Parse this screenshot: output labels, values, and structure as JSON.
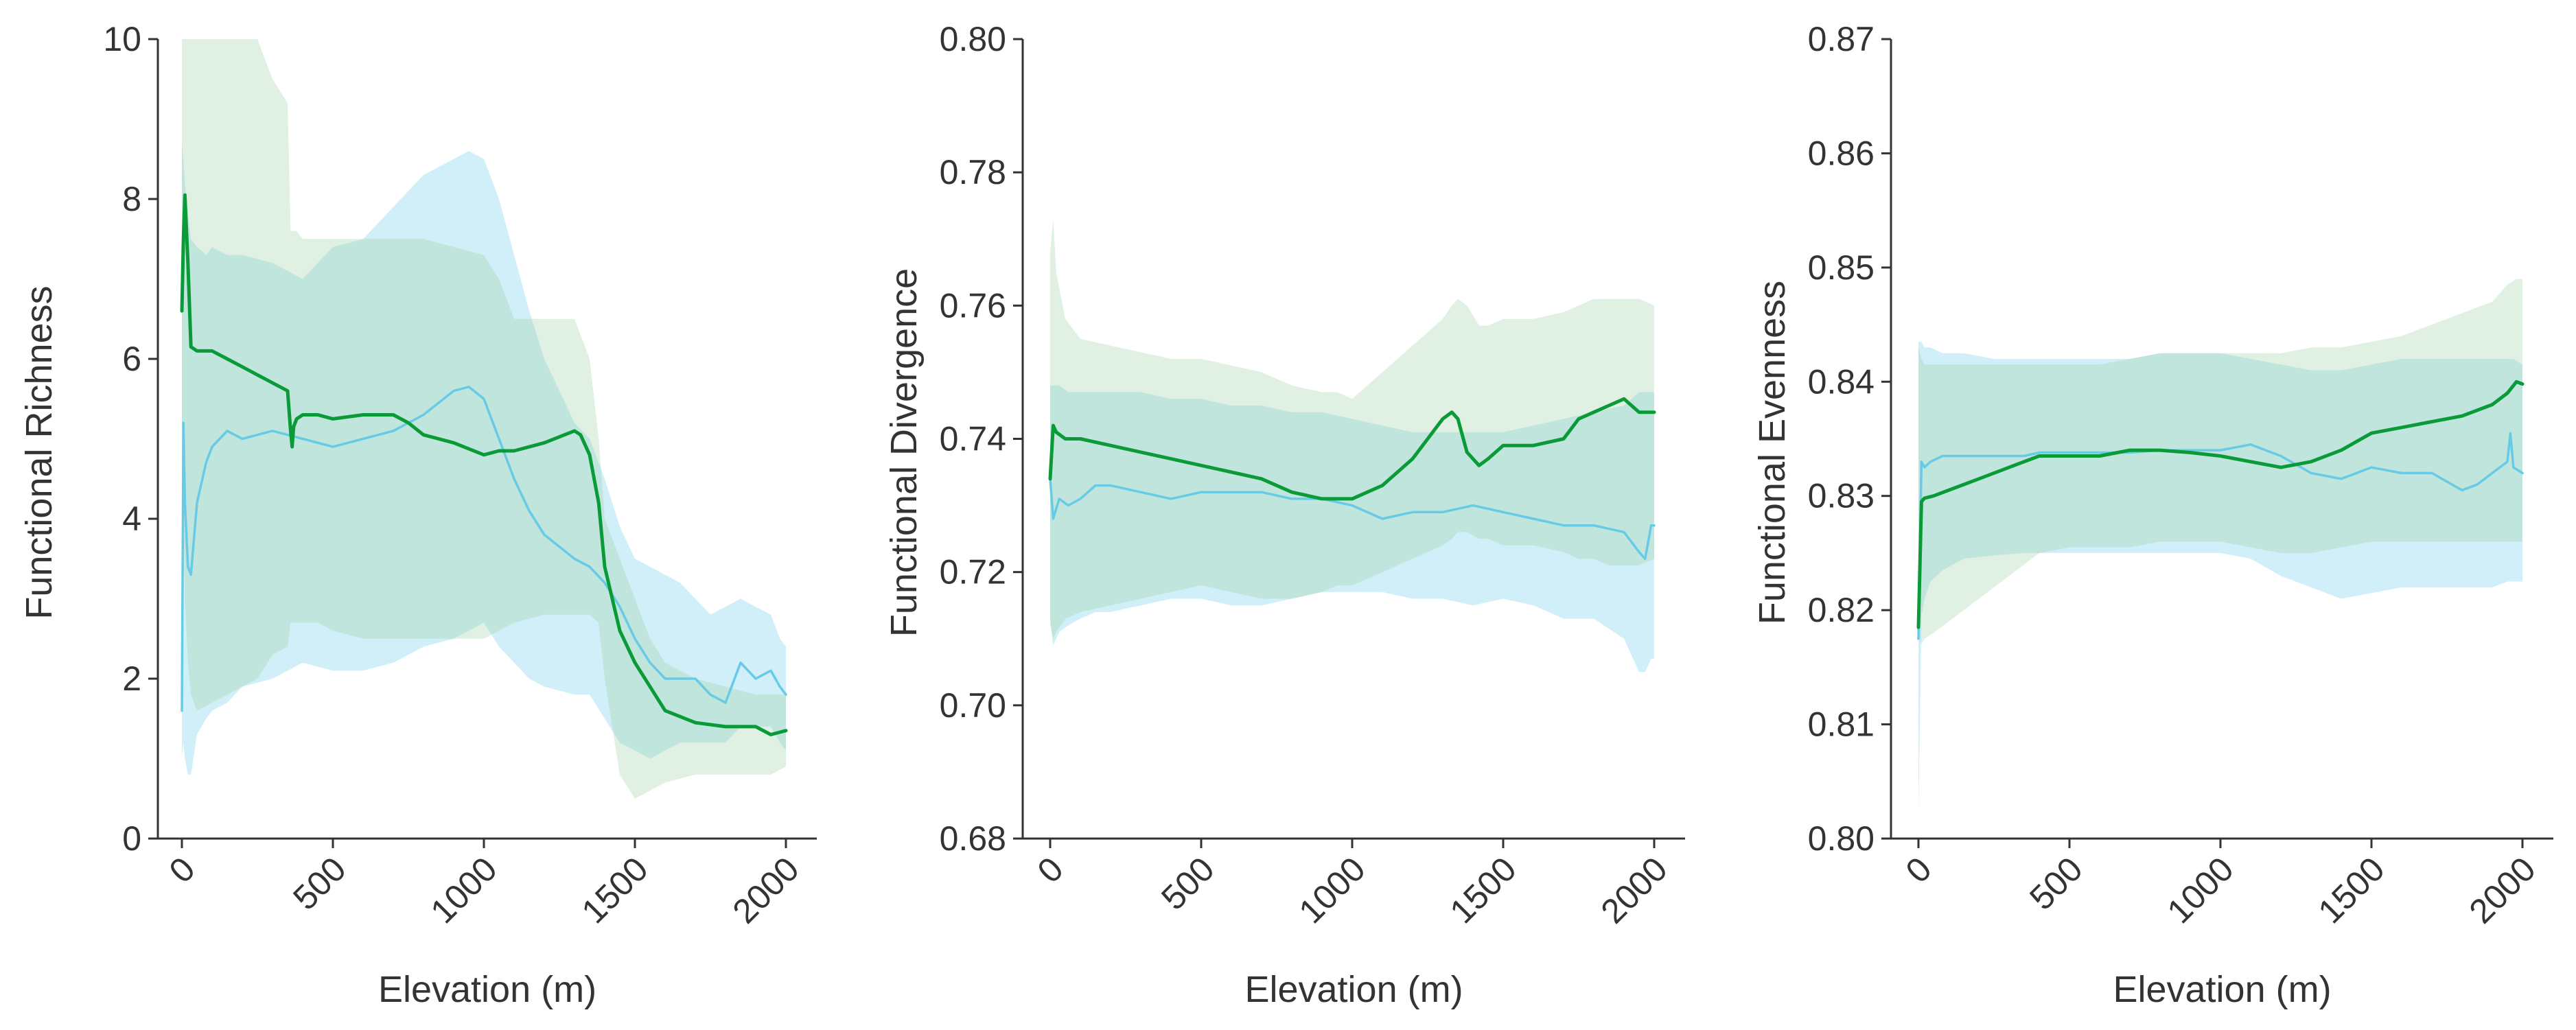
{
  "colors": {
    "green_line": "#0a9a38",
    "green_band": "#9fd1a4",
    "blue_line": "#67cbe6",
    "blue_band": "#8ad8ee"
  },
  "chart_data": [
    {
      "type": "line",
      "title": "",
      "xlabel": "Elevation (m)",
      "ylabel": "Functional Richness",
      "xlim": [
        0,
        2000
      ],
      "ylim": [
        0,
        10
      ],
      "xticks": [
        0,
        500,
        1000,
        1500,
        2000
      ],
      "xtick_labels": [
        "0",
        "500",
        "1000",
        "1500",
        "2000"
      ],
      "yticks": [
        0,
        2,
        4,
        6,
        8,
        10
      ],
      "ytick_labels": [
        "0",
        "2",
        "4",
        "6",
        "8",
        "10"
      ],
      "series": [
        {
          "name": "green",
          "color_key": "green",
          "x": [
            0,
            5,
            10,
            20,
            30,
            50,
            100,
            150,
            200,
            250,
            300,
            350,
            360,
            365,
            370,
            380,
            400,
            450,
            500,
            600,
            700,
            750,
            800,
            900,
            1000,
            1050,
            1100,
            1200,
            1300,
            1320,
            1350,
            1380,
            1400,
            1450,
            1500,
            1550,
            1600,
            1700,
            1800,
            1900,
            1950,
            2000
          ],
          "y": [
            6.6,
            7.5,
            8.05,
            7.2,
            6.15,
            6.1,
            6.1,
            6.0,
            5.9,
            5.8,
            5.7,
            5.6,
            5.1,
            4.9,
            5.15,
            5.25,
            5.3,
            5.3,
            5.25,
            5.3,
            5.3,
            5.2,
            5.05,
            4.95,
            4.8,
            4.85,
            4.85,
            4.95,
            5.1,
            5.05,
            4.8,
            4.2,
            3.4,
            2.6,
            2.2,
            1.9,
            1.6,
            1.45,
            1.4,
            1.4,
            1.3,
            1.35
          ],
          "lower": [
            5.2,
            4.0,
            3.0,
            2.2,
            1.8,
            1.6,
            1.7,
            1.8,
            1.9,
            2.0,
            2.3,
            2.4,
            2.7,
            2.7,
            2.7,
            2.7,
            2.7,
            2.7,
            2.6,
            2.5,
            2.5,
            2.5,
            2.5,
            2.5,
            2.5,
            2.6,
            2.7,
            2.8,
            2.8,
            2.8,
            2.8,
            2.7,
            2.0,
            0.8,
            0.5,
            0.6,
            0.7,
            0.8,
            0.8,
            0.8,
            0.8,
            0.9
          ],
          "upper": [
            10,
            10,
            10,
            10,
            10,
            10,
            10,
            10,
            10,
            10,
            9.5,
            9.2,
            7.6,
            7.6,
            7.6,
            7.6,
            7.5,
            7.5,
            7.5,
            7.5,
            7.5,
            7.5,
            7.5,
            7.4,
            7.3,
            7.0,
            6.5,
            6.5,
            6.5,
            6.3,
            6.0,
            5.0,
            4.0,
            3.5,
            3.0,
            2.5,
            2.2,
            2.0,
            1.9,
            1.8,
            1.8,
            1.8
          ]
        },
        {
          "name": "blue",
          "color_key": "blue",
          "x": [
            0,
            5,
            10,
            20,
            30,
            50,
            80,
            100,
            150,
            200,
            300,
            400,
            500,
            600,
            700,
            800,
            900,
            950,
            1000,
            1050,
            1100,
            1150,
            1200,
            1300,
            1350,
            1400,
            1450,
            1500,
            1550,
            1600,
            1650,
            1700,
            1750,
            1800,
            1850,
            1900,
            1950,
            1980,
            2000
          ],
          "y": [
            1.6,
            5.2,
            4.2,
            3.4,
            3.3,
            4.2,
            4.7,
            4.9,
            5.1,
            5.0,
            5.1,
            5.0,
            4.9,
            5.0,
            5.1,
            5.3,
            5.6,
            5.65,
            5.5,
            5.0,
            4.5,
            4.1,
            3.8,
            3.5,
            3.4,
            3.2,
            2.9,
            2.5,
            2.2,
            2.0,
            2.0,
            2.0,
            1.8,
            1.7,
            2.2,
            2.0,
            2.1,
            1.9,
            1.8
          ],
          "lower": [
            1.0,
            1.2,
            1.0,
            0.8,
            0.8,
            1.3,
            1.5,
            1.6,
            1.7,
            1.9,
            2.0,
            2.2,
            2.1,
            2.1,
            2.2,
            2.4,
            2.5,
            2.6,
            2.7,
            2.4,
            2.2,
            2.0,
            1.9,
            1.8,
            1.8,
            1.5,
            1.2,
            1.1,
            1.0,
            1.1,
            1.2,
            1.2,
            1.2,
            1.2,
            1.4,
            1.4,
            1.4,
            1.2,
            1.1
          ],
          "upper": [
            8.7,
            8.5,
            8.2,
            7.8,
            7.5,
            7.4,
            7.3,
            7.4,
            7.3,
            7.3,
            7.2,
            7.0,
            7.4,
            7.5,
            7.9,
            8.3,
            8.5,
            8.6,
            8.5,
            8.0,
            7.3,
            6.6,
            6.0,
            5.2,
            5.0,
            4.5,
            3.9,
            3.5,
            3.4,
            3.3,
            3.2,
            3.0,
            2.8,
            2.9,
            3.0,
            2.9,
            2.8,
            2.5,
            2.4
          ]
        }
      ]
    },
    {
      "type": "line",
      "title": "",
      "xlabel": "Elevation (m)",
      "ylabel": "Functional Divergence",
      "xlim": [
        0,
        2000
      ],
      "ylim": [
        0.68,
        0.8
      ],
      "xticks": [
        0,
        500,
        1000,
        1500,
        2000
      ],
      "xtick_labels": [
        "0",
        "500",
        "1000",
        "1500",
        "2000"
      ],
      "yticks": [
        0.68,
        0.7,
        0.72,
        0.74,
        0.76,
        0.78,
        0.8
      ],
      "ytick_labels": [
        "0.68",
        "0.70",
        "0.72",
        "0.74",
        "0.76",
        "0.78",
        "0.80"
      ],
      "series": [
        {
          "name": "green",
          "color_key": "green",
          "x": [
            0,
            10,
            20,
            50,
            100,
            200,
            300,
            400,
            500,
            600,
            700,
            800,
            900,
            950,
            1000,
            1050,
            1100,
            1200,
            1300,
            1330,
            1350,
            1380,
            1420,
            1450,
            1500,
            1600,
            1700,
            1750,
            1800,
            1850,
            1900,
            1950,
            2000
          ],
          "y": [
            0.734,
            0.742,
            0.741,
            0.74,
            0.74,
            0.739,
            0.738,
            0.737,
            0.736,
            0.735,
            0.734,
            0.732,
            0.731,
            0.731,
            0.731,
            0.732,
            0.733,
            0.737,
            0.743,
            0.744,
            0.743,
            0.738,
            0.736,
            0.737,
            0.739,
            0.739,
            0.74,
            0.743,
            0.744,
            0.745,
            0.746,
            0.744,
            0.744
          ],
          "lower": [
            0.712,
            0.71,
            0.711,
            0.713,
            0.714,
            0.715,
            0.716,
            0.717,
            0.718,
            0.717,
            0.716,
            0.716,
            0.717,
            0.718,
            0.718,
            0.719,
            0.72,
            0.722,
            0.724,
            0.725,
            0.726,
            0.726,
            0.725,
            0.725,
            0.724,
            0.724,
            0.723,
            0.722,
            0.722,
            0.721,
            0.721,
            0.721,
            0.722
          ],
          "upper": [
            0.768,
            0.773,
            0.765,
            0.758,
            0.755,
            0.754,
            0.753,
            0.752,
            0.752,
            0.751,
            0.75,
            0.748,
            0.747,
            0.747,
            0.746,
            0.748,
            0.75,
            0.754,
            0.758,
            0.76,
            0.761,
            0.76,
            0.757,
            0.757,
            0.758,
            0.758,
            0.759,
            0.76,
            0.761,
            0.761,
            0.761,
            0.761,
            0.76
          ]
        },
        {
          "name": "blue",
          "color_key": "blue",
          "x": [
            0,
            10,
            30,
            60,
            100,
            150,
            200,
            300,
            400,
            500,
            600,
            700,
            800,
            900,
            1000,
            1100,
            1200,
            1300,
            1400,
            1500,
            1600,
            1700,
            1800,
            1900,
            1950,
            1970,
            1990,
            2000
          ],
          "y": [
            0.734,
            0.728,
            0.731,
            0.73,
            0.731,
            0.733,
            0.733,
            0.732,
            0.731,
            0.732,
            0.732,
            0.732,
            0.731,
            0.731,
            0.73,
            0.728,
            0.729,
            0.729,
            0.73,
            0.729,
            0.728,
            0.727,
            0.727,
            0.726,
            0.723,
            0.722,
            0.727,
            0.727
          ],
          "lower": [
            0.713,
            0.709,
            0.711,
            0.712,
            0.713,
            0.714,
            0.714,
            0.715,
            0.716,
            0.716,
            0.715,
            0.715,
            0.716,
            0.717,
            0.717,
            0.717,
            0.716,
            0.716,
            0.715,
            0.716,
            0.715,
            0.713,
            0.713,
            0.71,
            0.705,
            0.705,
            0.707,
            0.707
          ],
          "upper": [
            0.748,
            0.748,
            0.748,
            0.747,
            0.747,
            0.747,
            0.747,
            0.747,
            0.746,
            0.746,
            0.745,
            0.745,
            0.744,
            0.744,
            0.743,
            0.742,
            0.741,
            0.741,
            0.741,
            0.741,
            0.742,
            0.743,
            0.744,
            0.745,
            0.747,
            0.747,
            0.747,
            0.747
          ]
        }
      ]
    },
    {
      "type": "line",
      "title": "",
      "xlabel": "Elevation (m)",
      "ylabel": "Functional Evenness",
      "xlim": [
        0,
        2000
      ],
      "ylim": [
        0.8,
        0.87
      ],
      "xticks": [
        0,
        500,
        1000,
        1500,
        2000
      ],
      "xtick_labels": [
        "0",
        "500",
        "1000",
        "1500",
        "2000"
      ],
      "yticks": [
        0.8,
        0.81,
        0.82,
        0.83,
        0.84,
        0.85,
        0.86,
        0.87
      ],
      "ytick_labels": [
        "0.80",
        "0.81",
        "0.82",
        "0.83",
        "0.84",
        "0.85",
        "0.86",
        "0.87"
      ],
      "series": [
        {
          "name": "green",
          "color_key": "green",
          "x": [
            0,
            10,
            20,
            50,
            100,
            200,
            300,
            400,
            500,
            600,
            700,
            800,
            900,
            1000,
            1100,
            1200,
            1300,
            1400,
            1500,
            1600,
            1700,
            1800,
            1900,
            1950,
            1980,
            2000
          ],
          "y": [
            0.8185,
            0.8295,
            0.8298,
            0.83,
            0.8305,
            0.8315,
            0.8325,
            0.8335,
            0.8335,
            0.8335,
            0.834,
            0.834,
            0.8338,
            0.8335,
            0.833,
            0.8325,
            0.833,
            0.834,
            0.8355,
            0.836,
            0.8365,
            0.837,
            0.838,
            0.839,
            0.84,
            0.8398
          ],
          "lower": [
            0.818,
            0.817,
            0.8175,
            0.818,
            0.819,
            0.821,
            0.823,
            0.825,
            0.8255,
            0.8255,
            0.8255,
            0.826,
            0.826,
            0.826,
            0.8255,
            0.825,
            0.825,
            0.8255,
            0.826,
            0.826,
            0.826,
            0.826,
            0.826,
            0.826,
            0.826,
            0.826
          ],
          "upper": [
            0.843,
            0.842,
            0.8415,
            0.8415,
            0.8415,
            0.8415,
            0.8415,
            0.8415,
            0.8415,
            0.8415,
            0.842,
            0.8425,
            0.8425,
            0.8425,
            0.8425,
            0.8425,
            0.843,
            0.843,
            0.8435,
            0.844,
            0.845,
            0.846,
            0.847,
            0.8485,
            0.849,
            0.849
          ]
        },
        {
          "name": "blue",
          "color_key": "blue",
          "x": [
            0,
            10,
            20,
            40,
            80,
            150,
            250,
            350,
            400,
            500,
            600,
            700,
            800,
            900,
            1000,
            1100,
            1200,
            1300,
            1400,
            1500,
            1600,
            1700,
            1800,
            1850,
            1900,
            1950,
            1960,
            1970,
            2000
          ],
          "y": [
            0.8175,
            0.833,
            0.8325,
            0.833,
            0.8335,
            0.8335,
            0.8335,
            0.8335,
            0.8338,
            0.8338,
            0.8338,
            0.8338,
            0.834,
            0.834,
            0.834,
            0.8345,
            0.8335,
            0.832,
            0.8315,
            0.8325,
            0.832,
            0.832,
            0.8305,
            0.831,
            0.832,
            0.833,
            0.8355,
            0.8325,
            0.832
          ],
          "lower": [
            0.802,
            0.8195,
            0.821,
            0.8225,
            0.8235,
            0.8245,
            0.8248,
            0.825,
            0.825,
            0.825,
            0.825,
            0.825,
            0.825,
            0.825,
            0.825,
            0.8245,
            0.823,
            0.822,
            0.821,
            0.8215,
            0.822,
            0.822,
            0.822,
            0.822,
            0.822,
            0.8225,
            0.8225,
            0.8225,
            0.8225
          ],
          "upper": [
            0.8435,
            0.8435,
            0.843,
            0.843,
            0.8425,
            0.8425,
            0.842,
            0.842,
            0.842,
            0.842,
            0.842,
            0.842,
            0.8425,
            0.8425,
            0.8425,
            0.842,
            0.8415,
            0.841,
            0.841,
            0.8415,
            0.842,
            0.842,
            0.842,
            0.842,
            0.842,
            0.842,
            0.842,
            0.842,
            0.8415
          ]
        }
      ]
    }
  ]
}
